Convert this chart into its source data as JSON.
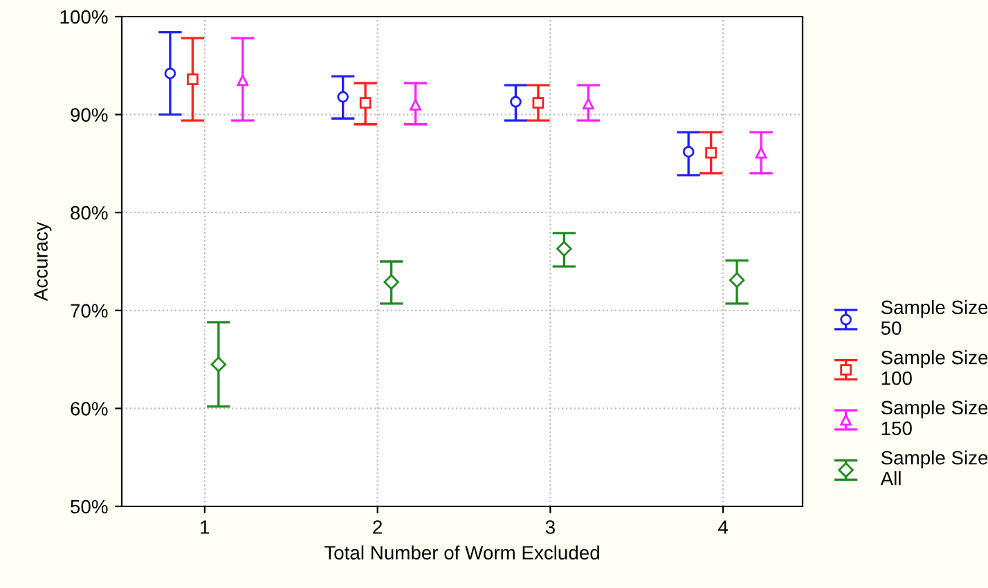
{
  "chart_data": {
    "type": "scatter",
    "xlabel": "Total Number of Worm Excluded",
    "ylabel": "Accuracy",
    "xlim": [
      0.52,
      4.46
    ],
    "xticks": [
      1,
      2,
      3,
      4
    ],
    "ylim": [
      50,
      100
    ],
    "yticks": [
      {
        "value": 50,
        "label": "50%"
      },
      {
        "value": 60,
        "label": "60%"
      },
      {
        "value": 70,
        "label": "70%"
      },
      {
        "value": 80,
        "label": "80%"
      },
      {
        "value": 90,
        "label": "90%"
      },
      {
        "value": 100,
        "label": "100%"
      }
    ],
    "grid": true,
    "legend": "right",
    "series": [
      {
        "name": "Sample Size\n50",
        "color": "#2020ff",
        "marker": "circle",
        "x": [
          0.8,
          1.8,
          2.8,
          3.8
        ],
        "values": [
          94.2,
          91.8,
          91.3,
          86.2
        ],
        "errors": [
          [
            90.0,
            98.4
          ],
          [
            89.6,
            93.9
          ],
          [
            89.4,
            93.0
          ],
          [
            83.8,
            88.2
          ]
        ]
      },
      {
        "name": "Sample Size\n100",
        "color": "#ff2020",
        "marker": "square",
        "x": [
          0.93,
          1.93,
          2.93,
          3.93
        ],
        "values": [
          93.6,
          91.2,
          91.2,
          86.1
        ],
        "errors": [
          [
            89.4,
            97.8
          ],
          [
            89.0,
            93.2
          ],
          [
            89.4,
            93.0
          ],
          [
            84.0,
            88.2
          ]
        ]
      },
      {
        "name": "Sample Size\n150",
        "color": "#ff20ff",
        "marker": "triangle",
        "x": [
          1.22,
          2.22,
          3.22,
          4.22
        ],
        "values": [
          93.5,
          91.0,
          91.1,
          86.1
        ],
        "errors": [
          [
            89.4,
            97.8
          ],
          [
            89.0,
            93.2
          ],
          [
            89.4,
            93.0
          ],
          [
            84.0,
            88.2
          ]
        ]
      },
      {
        "name": "Sample Size\nAll",
        "color": "#208a20",
        "marker": "diamond",
        "x": [
          1.08,
          2.08,
          3.08,
          4.08
        ],
        "values": [
          64.5,
          72.9,
          76.3,
          73.1
        ],
        "errors": [
          [
            60.2,
            68.8
          ],
          [
            70.7,
            75.0
          ],
          [
            74.5,
            77.9
          ],
          [
            70.7,
            75.1
          ]
        ]
      }
    ]
  }
}
